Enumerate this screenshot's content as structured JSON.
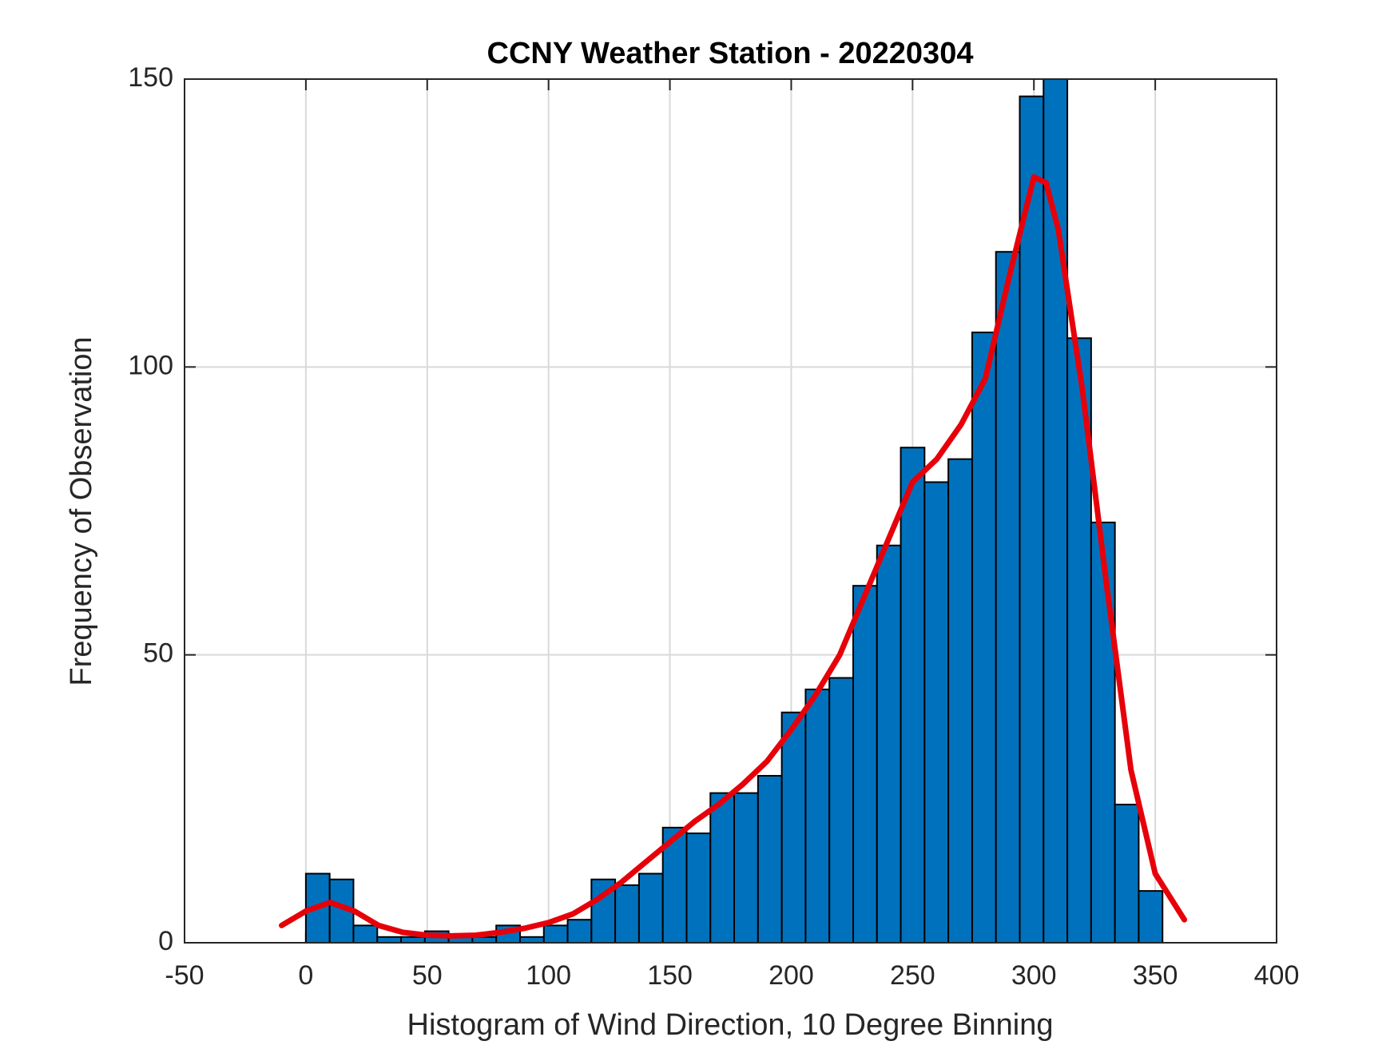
{
  "chart_data": {
    "type": "histogram",
    "title": "CCNY Weather Station - 20220304",
    "xlabel": "Histogram of Wind Direction, 10 Degree Binning",
    "ylabel": "Frequency of Observation",
    "bins": [
      0,
      9.81,
      19.61,
      29.42,
      39.22,
      49.03,
      58.83,
      68.64,
      78.44,
      88.25,
      98.06,
      107.86,
      117.67,
      127.47,
      137.28,
      147.08,
      156.89,
      166.69,
      176.5,
      186.31,
      196.11,
      205.92,
      215.72,
      225.53,
      235.33,
      245.14,
      254.94,
      264.75,
      274.56,
      284.36,
      294.17,
      303.97,
      313.78,
      323.58,
      333.39,
      343.19,
      353
    ],
    "values": [
      12,
      11,
      3,
      1,
      1,
      2,
      1,
      1,
      3,
      1,
      3,
      4,
      11,
      10,
      12,
      20,
      19,
      26,
      26,
      29,
      40,
      44,
      46,
      62,
      69,
      86,
      80,
      84,
      106,
      120,
      147,
      150,
      105,
      73,
      24,
      9
    ],
    "color": "#0072bd",
    "edgecolor": "#000000",
    "fit": {
      "color": "#e6000a",
      "x": [
        -10,
        0,
        10,
        20,
        30,
        40,
        50,
        60,
        70,
        80,
        90,
        100,
        110,
        120,
        130,
        140,
        150,
        160,
        170,
        180,
        190,
        200,
        210,
        220,
        230,
        240,
        250,
        260,
        270,
        280,
        290,
        300,
        305,
        310,
        320,
        330,
        340,
        350,
        362
      ],
      "values": [
        3,
        5.5,
        7,
        5.5,
        3,
        1.8,
        1.3,
        1.2,
        1.3,
        1.8,
        2.5,
        3.5,
        5,
        7.5,
        10.5,
        14,
        17.5,
        21,
        24,
        27.5,
        31.5,
        37,
        43,
        50,
        60,
        70,
        80,
        84,
        90,
        98,
        116,
        133,
        132,
        124,
        96,
        62,
        30,
        12,
        4
      ]
    },
    "xlim": [
      -50,
      400
    ],
    "ylim": [
      0,
      150
    ],
    "xticks": [
      -50,
      0,
      50,
      100,
      150,
      200,
      250,
      300,
      350,
      400
    ],
    "yticks": [
      0,
      50,
      100,
      150
    ],
    "grid": true
  }
}
